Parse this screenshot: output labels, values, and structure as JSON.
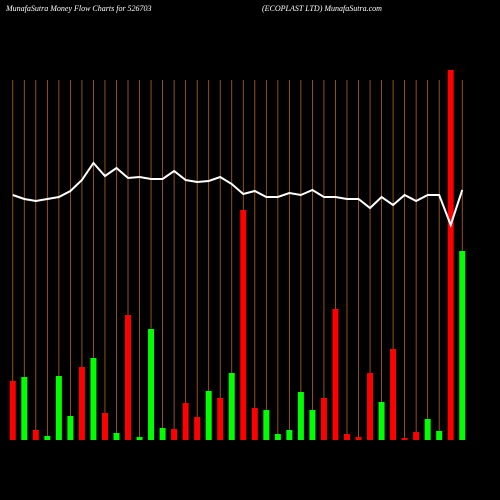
{
  "chart_data": {
    "type": "bar",
    "title": "MunafaSutra  Money Flow  Charts for 526703",
    "subtitle": "(ECOPLAST LTD) MunafaSutra.com",
    "categories": [
      null,
      null,
      null,
      null,
      null,
      null,
      null,
      null,
      null,
      null,
      null,
      null,
      null,
      null,
      null,
      null,
      null,
      null,
      null,
      null,
      null,
      null,
      null,
      null,
      null,
      null,
      null,
      null,
      null,
      null,
      null,
      null,
      null,
      null,
      null,
      null,
      null,
      null,
      null,
      null
    ],
    "series": [
      {
        "values": [
          59,
          63,
          10,
          4,
          64,
          24,
          73,
          82,
          27,
          7,
          125,
          3,
          111,
          12,
          11,
          37,
          23,
          49,
          42,
          67,
          230,
          32,
          30,
          6,
          10,
          48,
          30,
          42,
          131,
          6,
          3,
          67,
          38,
          91,
          2,
          8,
          21,
          9,
          370,
          189
        ],
        "colors": [
          "#ff0000",
          "#00ff00",
          "#ff0000",
          "#00ff00",
          "#00ff00",
          "#00ff00",
          "#ff0000",
          "#00ff00",
          "#ff0000",
          "#00ff00",
          "#ff0000",
          "#00ff00",
          "#00ff00",
          "#00ff00",
          "#ff0000",
          "#ff0000",
          "#ff0000",
          "#00ff00",
          "#ff0000",
          "#00ff00",
          "#ff0000",
          "#ff0000",
          "#00ff00",
          "#00ff00",
          "#00ff00",
          "#00ff00",
          "#00ff00",
          "#ff0000",
          "#ff0000",
          "#ff0000",
          "#ff0000",
          "#ff0000",
          "#00ff00",
          "#ff0000",
          "#ff0000",
          "#ff0000",
          "#00ff00",
          "#00ff00",
          "#ff0000",
          "#00ff00"
        ]
      },
      {
        "values": [
          245,
          241,
          239,
          241,
          243,
          249,
          260,
          277,
          264,
          272,
          262,
          263,
          261,
          261,
          269,
          260,
          258,
          259,
          263,
          256,
          246,
          249,
          243,
          243,
          247,
          245,
          250,
          243,
          243,
          241,
          241,
          232,
          243,
          235,
          245,
          239,
          245,
          245,
          215,
          250
        ],
        "color": "#ffffff"
      }
    ],
    "ylim": [
      0,
      380
    ],
    "gridlines_color": "#b8651b"
  }
}
